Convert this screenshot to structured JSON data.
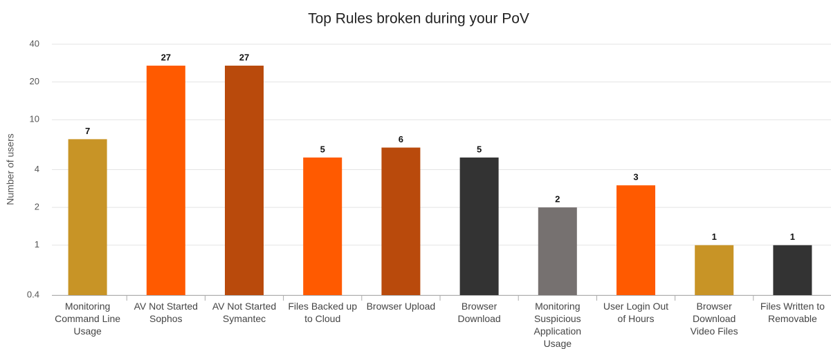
{
  "chart_data": {
    "type": "bar",
    "title": "Top Rules broken during your PoV",
    "y_label": "Number of users",
    "categories": [
      "Monitoring Command Line Usage",
      "AV Not Started Sophos",
      "AV Not Started Symantec",
      "Files Backed up to Cloud",
      "Browser Upload",
      "Browser Download",
      "Monitoring Suspicious Application Usage",
      "User Login Out of Hours",
      "Browser Download Video Files",
      "Files Written to Removable"
    ],
    "values": [
      7,
      27,
      27,
      5,
      6,
      5,
      2,
      3,
      1,
      1
    ],
    "colors": [
      "#c89426",
      "#ff5a00",
      "#b94a0c",
      "#ff5a00",
      "#b94a0c",
      "#333333",
      "#767170",
      "#ff5a00",
      "#c89426",
      "#333333"
    ],
    "ylim": [
      0.4,
      40
    ],
    "yticks": [
      0.4,
      1,
      2,
      4,
      10,
      20,
      40
    ],
    "log_scale": true,
    "grid": true
  }
}
